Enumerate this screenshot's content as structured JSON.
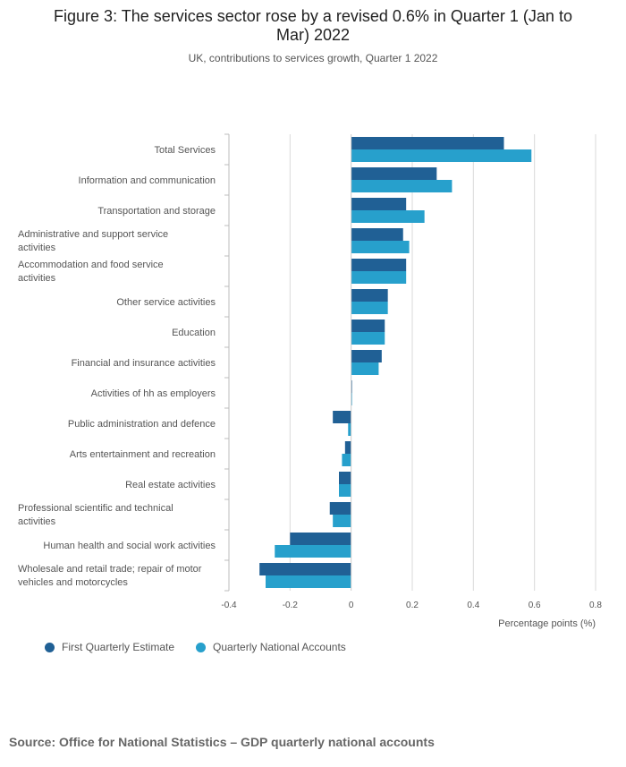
{
  "page": {
    "title_line1": "Figure 3: The services sector rose by a revised 0.6% in Quarter 1 (Jan to",
    "title_line2": "Mar) 2022",
    "subtitle": "UK, contributions to services growth, Quarter 1 2022",
    "source": "Source: Office for National Statistics – GDP quarterly national accounts"
  },
  "colors": {
    "series1": "#206095",
    "series2": "#27a0cc",
    "grid": "#d9d9d9",
    "axis": "#bcbcbc"
  },
  "chart_data": {
    "type": "bar",
    "orientation": "horizontal",
    "title": "Figure 3: The services sector rose by a revised 0.6% in Quarter 1 (Jan to Mar) 2022",
    "subtitle": "UK, contributions to services growth, Quarter 1 2022",
    "xlabel": "Percentage points (%)",
    "xlim": [
      -0.4,
      0.8
    ],
    "xticks": [
      -0.4,
      -0.2,
      0,
      0.2,
      0.4,
      0.6,
      0.8
    ],
    "xtick_labels": [
      "-0.4",
      "-0.2",
      "0",
      "0.2",
      "0.4",
      "0.6",
      "0.8"
    ],
    "grid": true,
    "legend_position": "bottom-left",
    "categories": [
      [
        "Total Services"
      ],
      [
        "Information and communication"
      ],
      [
        "Transportation and storage"
      ],
      [
        "Administrative and support service",
        "activities"
      ],
      [
        "Accommodation and food service",
        "activities"
      ],
      [
        "Other service activities"
      ],
      [
        "Education"
      ],
      [
        "Financial and insurance activities"
      ],
      [
        "Activities of hh as employers"
      ],
      [
        "Public administration and defence"
      ],
      [
        "Arts entertainment and recreation"
      ],
      [
        "Real estate activities"
      ],
      [
        "Professional scientific and technical",
        "activities"
      ],
      [
        "Human health and social work activities"
      ],
      [
        "Wholesale and retail trade; repair of motor",
        "vehicles and motorcycles"
      ]
    ],
    "series": [
      {
        "name": "First Quarterly Estimate",
        "values": [
          0.5,
          0.28,
          0.18,
          0.17,
          0.18,
          0.12,
          0.11,
          0.1,
          0.0,
          -0.06,
          -0.02,
          -0.04,
          -0.07,
          -0.2,
          -0.3
        ]
      },
      {
        "name": "Quarterly National Accounts",
        "values": [
          0.59,
          0.33,
          0.24,
          0.19,
          0.18,
          0.12,
          0.11,
          0.09,
          0.0,
          -0.01,
          -0.03,
          -0.04,
          -0.06,
          -0.25,
          -0.28
        ]
      }
    ]
  }
}
